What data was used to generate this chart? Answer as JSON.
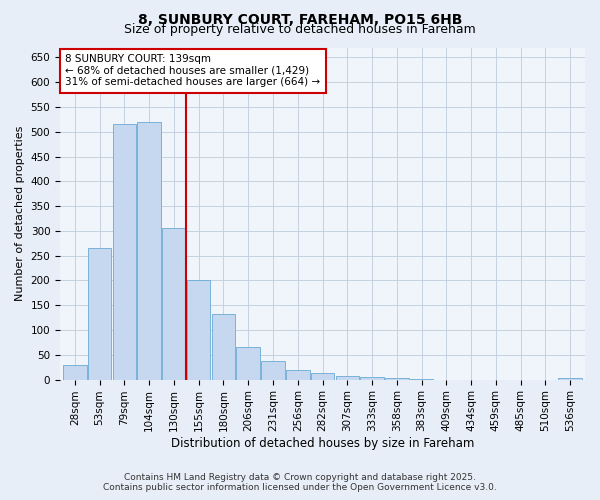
{
  "title1": "8, SUNBURY COURT, FAREHAM, PO15 6HB",
  "title2": "Size of property relative to detached houses in Fareham",
  "xlabel": "Distribution of detached houses by size in Fareham",
  "ylabel": "Number of detached properties",
  "categories": [
    "28sqm",
    "53sqm",
    "79sqm",
    "104sqm",
    "130sqm",
    "155sqm",
    "180sqm",
    "206sqm",
    "231sqm",
    "256sqm",
    "282sqm",
    "307sqm",
    "333sqm",
    "358sqm",
    "383sqm",
    "409sqm",
    "434sqm",
    "459sqm",
    "485sqm",
    "510sqm",
    "536sqm"
  ],
  "values": [
    30,
    265,
    515,
    520,
    305,
    200,
    133,
    66,
    38,
    20,
    13,
    8,
    5,
    3,
    1,
    0,
    0,
    0,
    0,
    0,
    4
  ],
  "bar_color": "#c5d8f0",
  "bar_edge_color": "#6aaad4",
  "vline_after_index": 4,
  "vline_color": "#cc0000",
  "annotation_title": "8 SUNBURY COURT: 139sqm",
  "annotation_line1": "← 68% of detached houses are smaller (1,429)",
  "annotation_line2": "31% of semi-detached houses are larger (664) →",
  "annotation_box_edgecolor": "#cc0000",
  "ylim": [
    0,
    670
  ],
  "yticks": [
    0,
    50,
    100,
    150,
    200,
    250,
    300,
    350,
    400,
    450,
    500,
    550,
    600,
    650
  ],
  "footer1": "Contains HM Land Registry data © Crown copyright and database right 2025.",
  "footer2": "Contains public sector information licensed under the Open Government Licence v3.0.",
  "bg_color": "#e8eef8",
  "plot_bg_color": "#f0f4fb",
  "grid_color": "#c0ccdd",
  "title1_fontsize": 10,
  "title2_fontsize": 9,
  "xlabel_fontsize": 8.5,
  "ylabel_fontsize": 8,
  "tick_fontsize": 7.5,
  "footer_fontsize": 6.5
}
